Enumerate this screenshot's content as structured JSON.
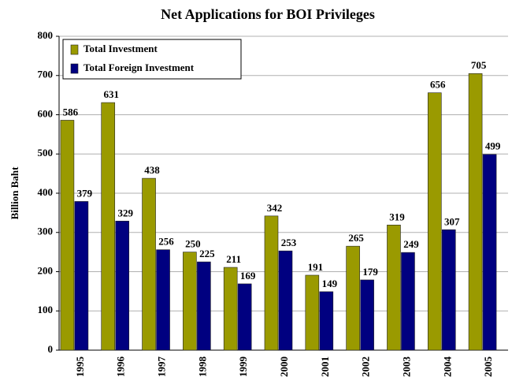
{
  "chart_data": {
    "type": "bar",
    "title": "Net Applications for BOI Privileges",
    "ylabel": "Billion Baht",
    "categories": [
      "1995",
      "1996",
      "1997",
      "1998",
      "1999",
      "2000",
      "2001",
      "2002",
      "2003",
      "2004",
      "2005"
    ],
    "series": [
      {
        "name": "Total Investment",
        "color": "#9a9a00",
        "values": [
          586,
          631,
          438,
          250,
          211,
          342,
          191,
          265,
          319,
          656,
          705
        ]
      },
      {
        "name": "Total Foreign Investment",
        "color": "#000080",
        "values": [
          379,
          329,
          256,
          225,
          169,
          253,
          149,
          179,
          249,
          307,
          499
        ]
      }
    ],
    "ylim": [
      0,
      800
    ],
    "yticks": [
      0,
      100,
      200,
      300,
      400,
      500,
      600,
      700,
      800
    ],
    "grid": true,
    "legend": "upper left"
  }
}
